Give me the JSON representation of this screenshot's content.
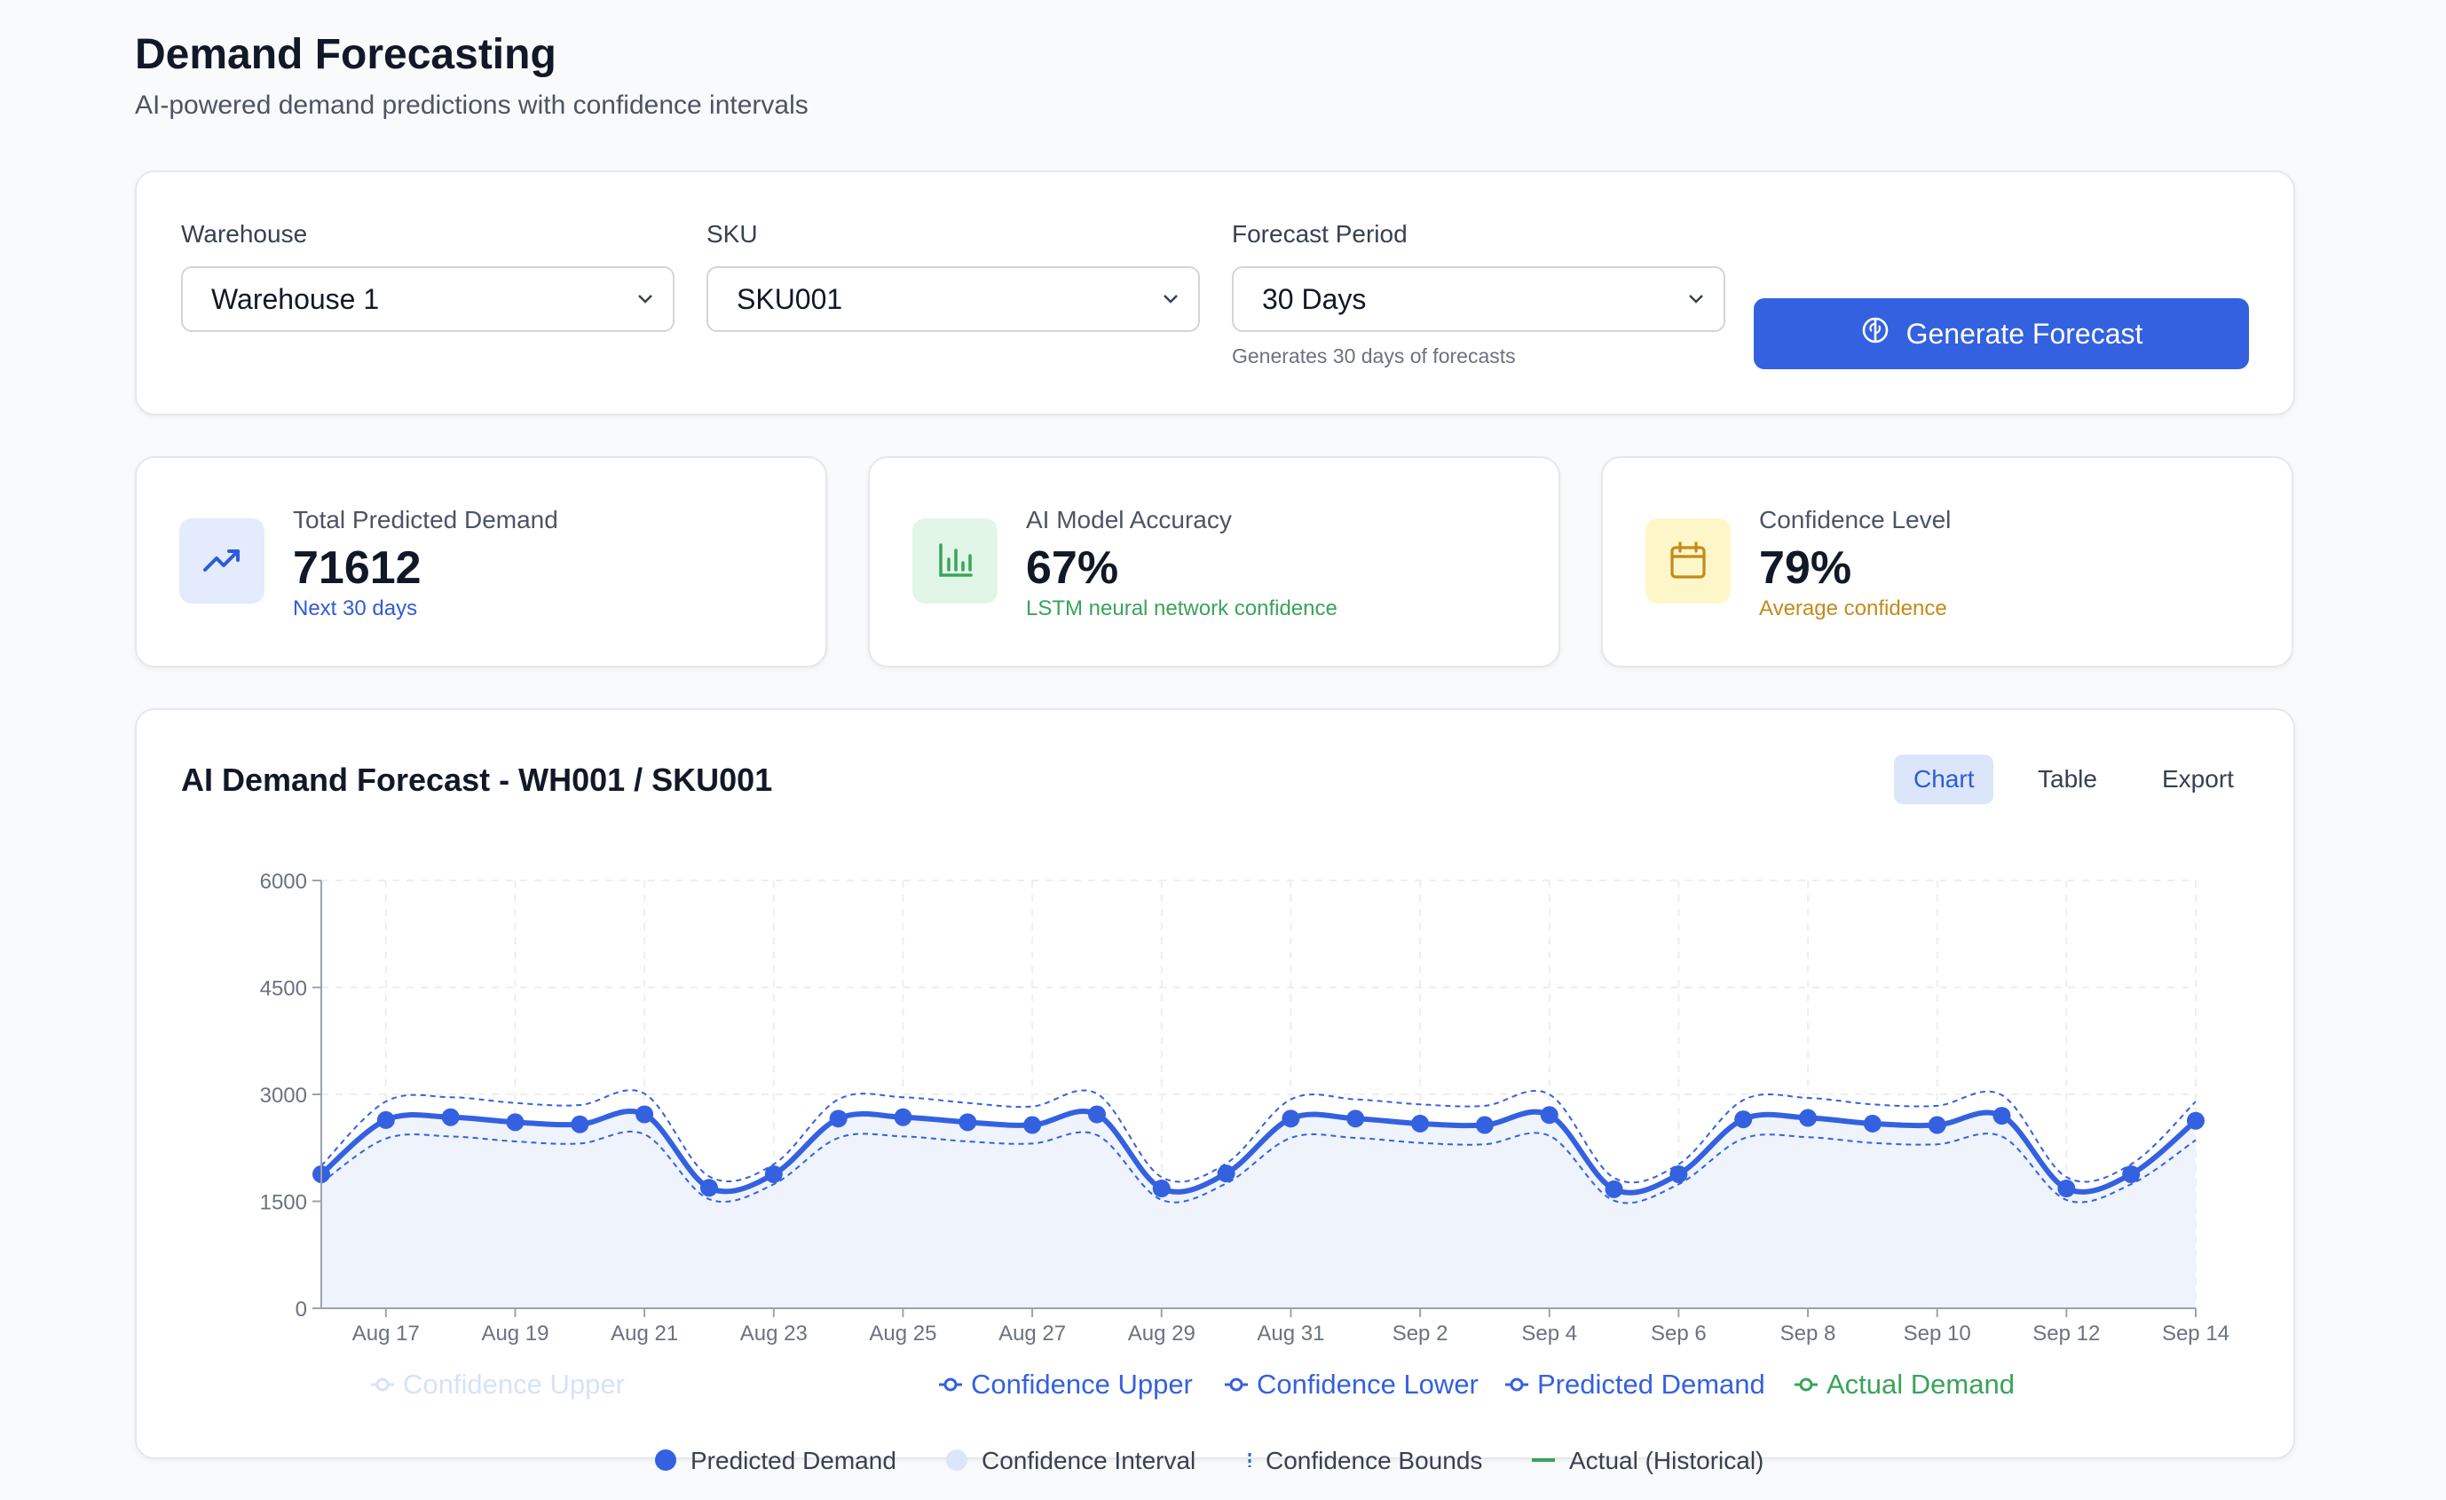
{
  "header": {
    "title": "Demand Forecasting",
    "subtitle": "AI-powered demand predictions with confidence intervals"
  },
  "controls": {
    "warehouse": {
      "label": "Warehouse",
      "value": "Warehouse 1"
    },
    "sku": {
      "label": "SKU",
      "value": "SKU001"
    },
    "period": {
      "label": "Forecast Period",
      "value": "30 Days",
      "hint": "Generates 30 days of forecasts"
    },
    "generate_label": "Generate Forecast"
  },
  "stats": [
    {
      "label": "Total Predicted Demand",
      "value": "71612",
      "sub": "Next 30 days",
      "icon": "trending-up-icon",
      "color": "#2f5bd8",
      "bg": "#e3ebfc"
    },
    {
      "label": "AI Model Accuracy",
      "value": "67%",
      "sub": "LSTM neural network confidence",
      "icon": "bar-chart-icon",
      "color": "#3aa35a",
      "bg": "#e2f6e7"
    },
    {
      "label": "Confidence Level",
      "value": "79%",
      "sub": "Average confidence",
      "icon": "calendar-icon",
      "color": "#c58a1a",
      "bg": "#fdf6c8"
    }
  ],
  "chart_panel": {
    "title": "AI Demand Forecast - WH001 / SKU001",
    "views": [
      "Chart",
      "Table",
      "Export"
    ],
    "active_view": "Chart"
  },
  "chart_data": {
    "type": "line",
    "x": [
      "Aug 16",
      "Aug 17",
      "Aug 18",
      "Aug 19",
      "Aug 20",
      "Aug 21",
      "Aug 22",
      "Aug 23",
      "Aug 24",
      "Aug 25",
      "Aug 26",
      "Aug 27",
      "Aug 28",
      "Aug 29",
      "Aug 30",
      "Aug 31",
      "Sep 1",
      "Sep 2",
      "Sep 3",
      "Sep 4",
      "Sep 5",
      "Sep 6",
      "Sep 7",
      "Sep 8",
      "Sep 9",
      "Sep 10",
      "Sep 11",
      "Sep 12",
      "Sep 13",
      "Sep 14"
    ],
    "x_tick_labels": [
      "Aug 17",
      "Aug 19",
      "Aug 21",
      "Aug 23",
      "Aug 25",
      "Aug 27",
      "Aug 29",
      "Aug 31",
      "Sep 2",
      "Sep 4",
      "Sep 6",
      "Sep 8",
      "Sep 10",
      "Sep 12",
      "Sep 14"
    ],
    "ylim": [
      0,
      6000
    ],
    "y_ticks": [
      0,
      1500,
      3000,
      4500,
      6000
    ],
    "grid": true,
    "series": [
      {
        "name": "Predicted Demand",
        "color": "#3461e0",
        "values": [
          1880,
          2640,
          2680,
          2610,
          2580,
          2720,
          1690,
          1880,
          2660,
          2680,
          2610,
          2570,
          2720,
          1680,
          1890,
          2660,
          2660,
          2590,
          2570,
          2710,
          1670,
          1880,
          2650,
          2670,
          2590,
          2570,
          2700,
          1680,
          1880,
          2630
        ]
      },
      {
        "name": "Confidence Upper",
        "color": "#3461e0",
        "values": [
          2000,
          2900,
          2960,
          2880,
          2850,
          3010,
          1850,
          2020,
          2930,
          2960,
          2880,
          2830,
          3010,
          1840,
          2030,
          2930,
          2930,
          2860,
          2840,
          3000,
          1830,
          2020,
          2920,
          2950,
          2860,
          2840,
          2990,
          1840,
          2020,
          2900
        ]
      },
      {
        "name": "Confidence Lower",
        "color": "#3461e0",
        "values": [
          1760,
          2380,
          2410,
          2340,
          2310,
          2440,
          1530,
          1740,
          2390,
          2410,
          2340,
          2310,
          2430,
          1520,
          1750,
          2390,
          2390,
          2320,
          2300,
          2420,
          1510,
          1740,
          2380,
          2400,
          2320,
          2300,
          2410,
          1520,
          1740,
          2360
        ]
      }
    ],
    "legend_series": [
      "Confidence Upper",
      "Confidence Lower",
      "Predicted Demand",
      "Actual Demand"
    ],
    "legend_faded": "Confidence Upper",
    "legend_bottom": [
      "Predicted Demand",
      "Confidence Interval",
      "Confidence Bounds",
      "Actual (Historical)"
    ],
    "legend_colors": {
      "blue": "#3461e0",
      "green": "#3aa35a",
      "faded": "#d6e2fb",
      "interval": "#dbe6fb"
    }
  }
}
